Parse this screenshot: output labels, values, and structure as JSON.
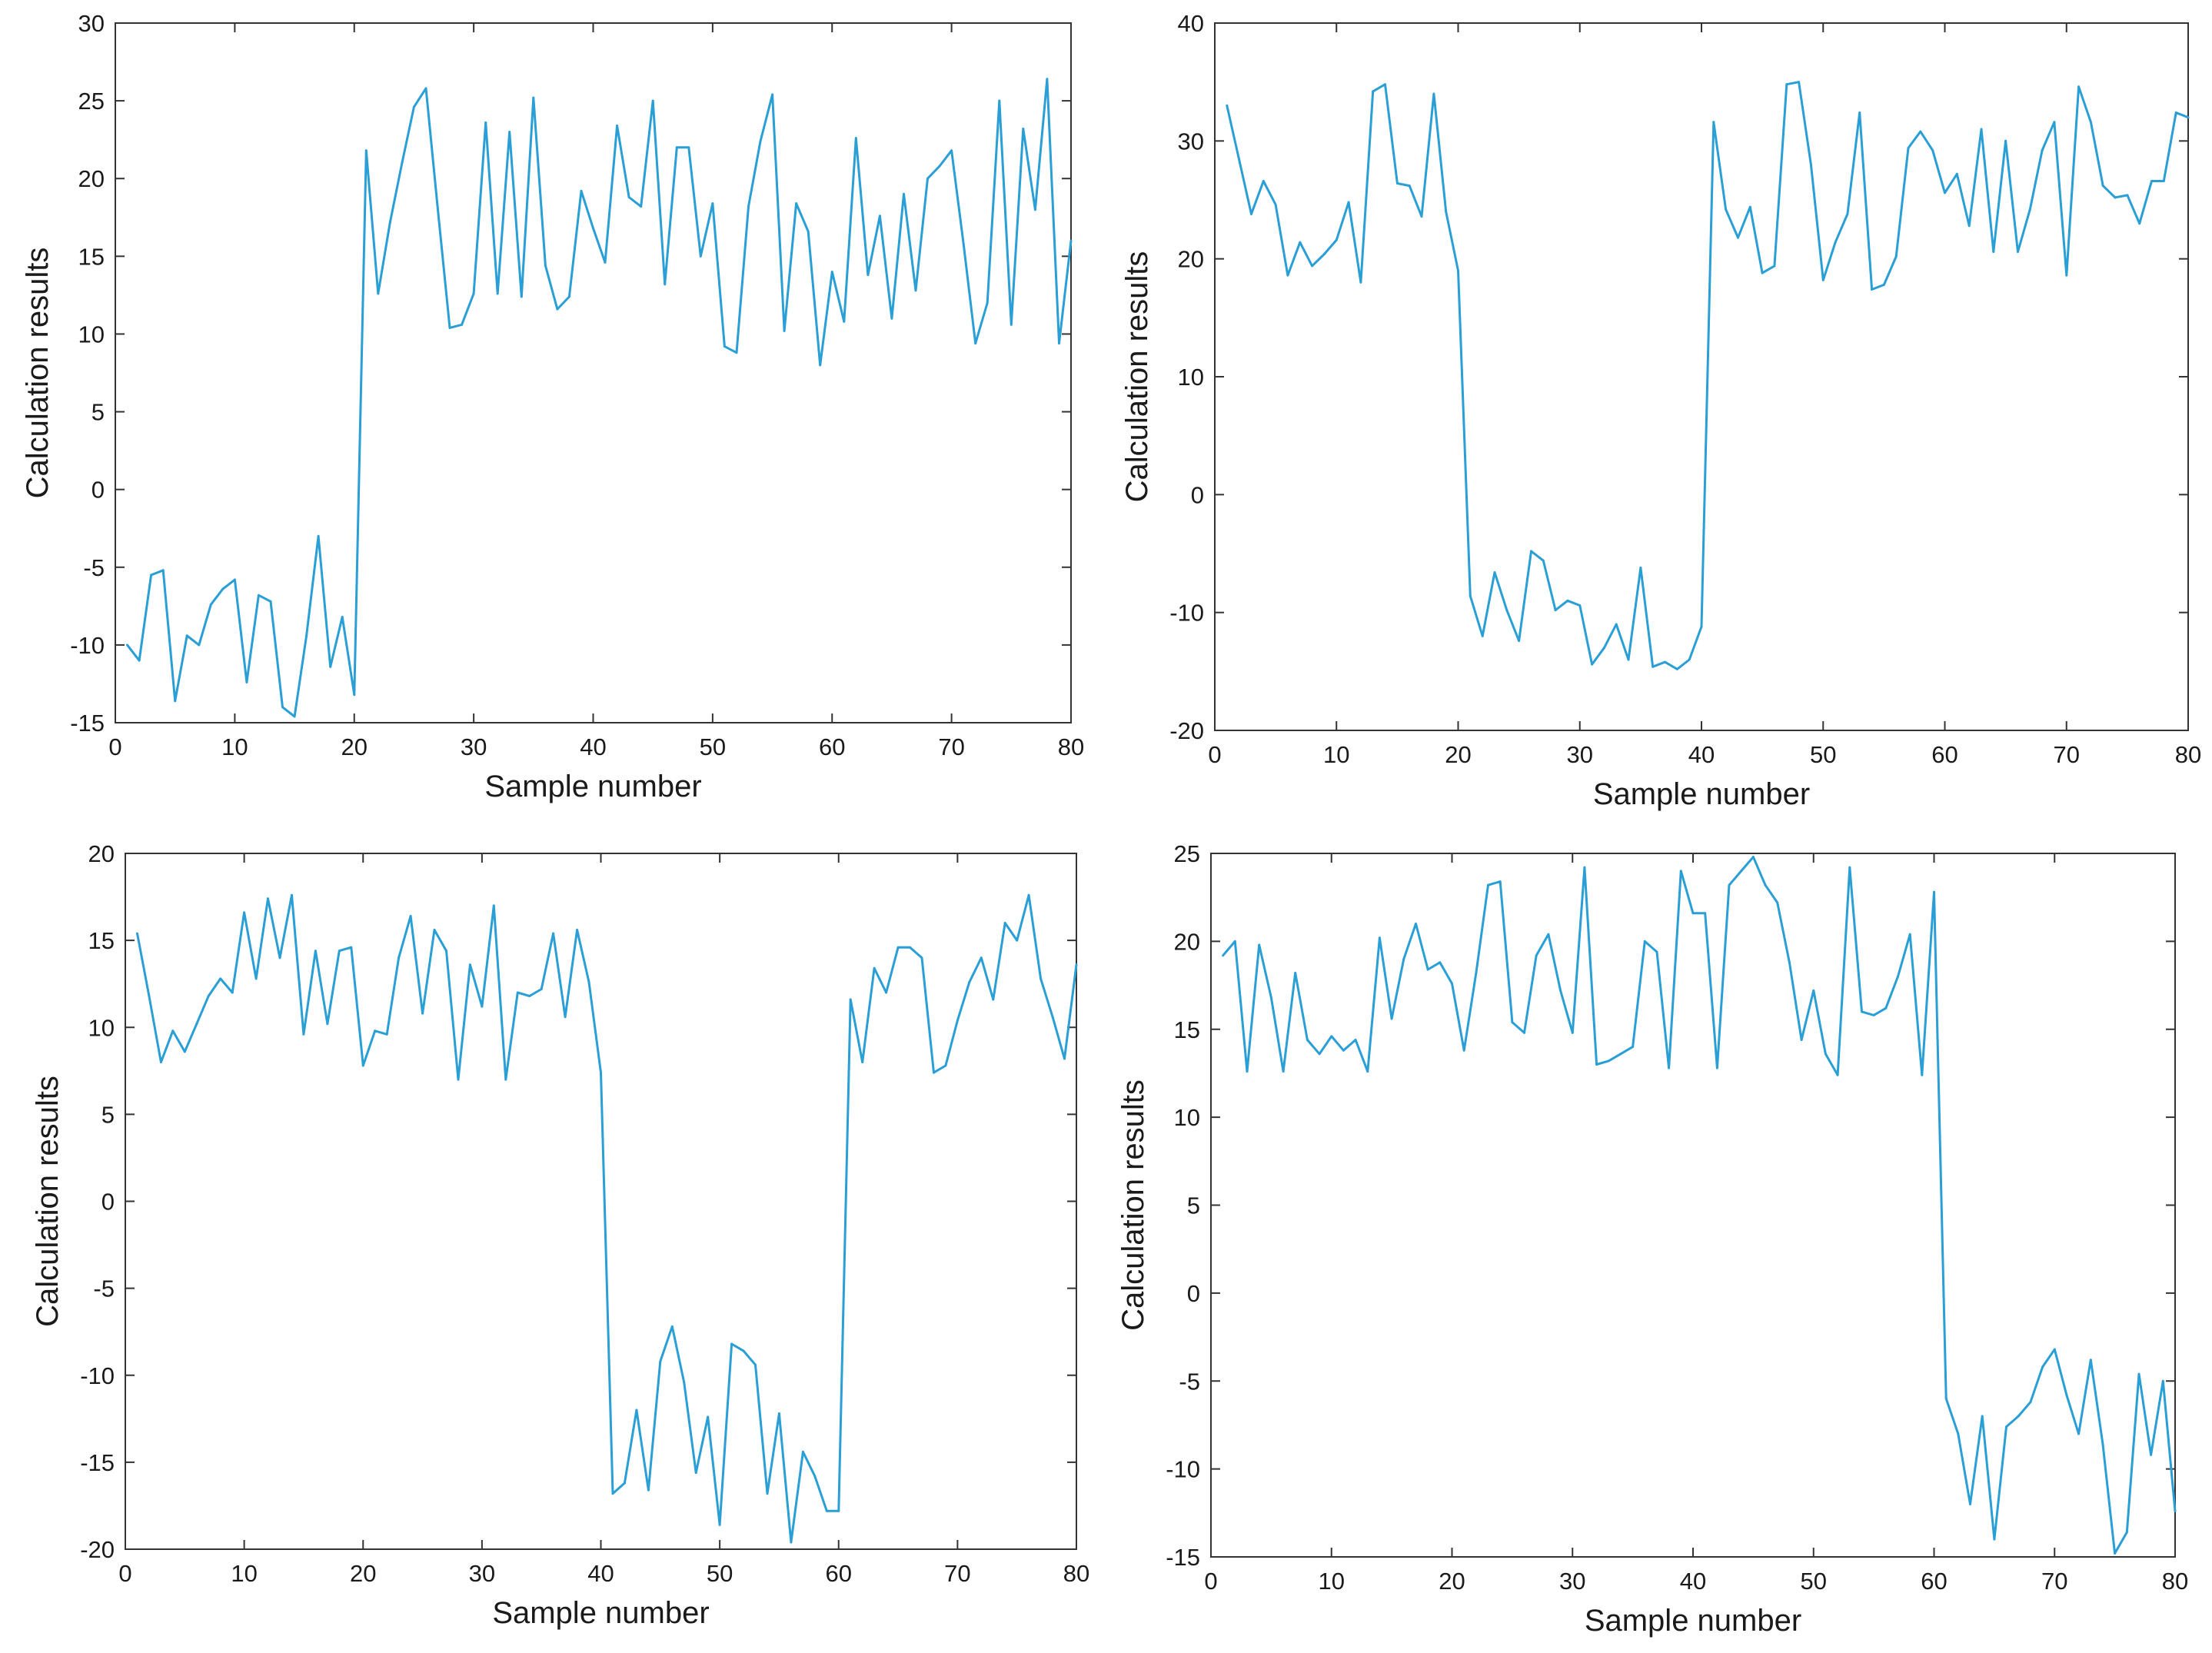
{
  "colors": {
    "line": "#2a9fd6",
    "axis": "#333333",
    "text": "#1a1a1a",
    "background": "#ffffff"
  },
  "chart_data": [
    {
      "type": "line",
      "title": "",
      "xlabel": "Sample number",
      "ylabel": "Calculation results",
      "xlim": [
        0,
        80
      ],
      "ylim": [
        -15,
        30
      ],
      "xticks": [
        0,
        10,
        20,
        30,
        40,
        50,
        60,
        70,
        80
      ],
      "yticks": [
        -15,
        -10,
        -5,
        0,
        5,
        10,
        15,
        20,
        25,
        30
      ],
      "grid": false,
      "series": [
        {
          "name": "Calculation results",
          "x_start": 1,
          "values": [
            -10,
            -11,
            -5.5,
            -5.2,
            -13.6,
            -9.4,
            -10,
            -7.4,
            -6.4,
            -5.8,
            -12.4,
            -6.8,
            -7.2,
            -14.0,
            -14.6,
            -9.4,
            -3.0,
            -11.4,
            -8.2,
            -13.2,
            21.8,
            12.6,
            17.2,
            21.0,
            24.6,
            25.8,
            18.0,
            10.4,
            10.6,
            12.6,
            23.6,
            12.6,
            23.0,
            12.4,
            25.2,
            14.4,
            11.6,
            12.4,
            19.2,
            16.8,
            14.6,
            23.4,
            18.8,
            18.2,
            25.0,
            13.2,
            22.0,
            22.0,
            15.0,
            18.4,
            9.2,
            8.8,
            18.2,
            22.4,
            25.4,
            10.2,
            18.4,
            16.6,
            8.0,
            14.0,
            10.8,
            22.6,
            13.8,
            17.6,
            11.0,
            19.0,
            12.8,
            20.0,
            20.8,
            21.8,
            15.8,
            9.4,
            12.0,
            25.0,
            10.6,
            23.2,
            18.0,
            26.4,
            9.4,
            16.0
          ]
        }
      ]
    },
    {
      "type": "line",
      "title": "",
      "xlabel": "Sample number",
      "ylabel": "Calculation results",
      "xlim": [
        0,
        80
      ],
      "ylim": [
        -20,
        40
      ],
      "xticks": [
        0,
        10,
        20,
        30,
        40,
        50,
        60,
        70,
        80
      ],
      "yticks": [
        -20,
        -10,
        0,
        10,
        20,
        30,
        40
      ],
      "grid": false,
      "series": [
        {
          "name": "Calculation results",
          "x_start": 1,
          "values": [
            33.0,
            28.4,
            23.8,
            26.6,
            24.6,
            18.6,
            21.4,
            19.4,
            20.4,
            21.6,
            24.8,
            18.0,
            34.2,
            34.8,
            26.4,
            26.2,
            23.6,
            34.0,
            24.0,
            19.0,
            -8.6,
            -12.0,
            -6.6,
            -9.8,
            -12.4,
            -4.8,
            -5.6,
            -9.8,
            -9.0,
            -9.4,
            -14.4,
            -13.0,
            -11.0,
            -14.0,
            -6.2,
            -14.6,
            -14.2,
            -14.8,
            -14.0,
            -11.2,
            31.6,
            24.2,
            21.8,
            24.4,
            18.8,
            19.4,
            34.8,
            35.0,
            28.0,
            18.2,
            21.4,
            23.8,
            32.4,
            17.4,
            17.8,
            20.2,
            29.4,
            30.8,
            29.2,
            25.6,
            27.2,
            22.8,
            31.0,
            20.6,
            30.0,
            20.6,
            24.2,
            29.2,
            31.6,
            18.6,
            34.6,
            31.6,
            26.2,
            25.2,
            25.4,
            23.0,
            26.6,
            26.6,
            32.4,
            32.0
          ]
        }
      ]
    },
    {
      "type": "line",
      "title": "",
      "xlabel": "Sample number",
      "ylabel": "Calculation results",
      "xlim": [
        0,
        80
      ],
      "ylim": [
        -20,
        20
      ],
      "xticks": [
        0,
        10,
        20,
        30,
        40,
        50,
        60,
        70,
        80
      ],
      "yticks": [
        -20,
        -15,
        -10,
        -5,
        0,
        5,
        10,
        15,
        20
      ],
      "grid": false,
      "series": [
        {
          "name": "Calculation results",
          "x_start": 1,
          "values": [
            15.4,
            11.8,
            8.0,
            9.8,
            8.6,
            10.2,
            11.8,
            12.8,
            12.0,
            16.6,
            12.8,
            17.4,
            14.0,
            17.6,
            9.6,
            14.4,
            10.2,
            14.4,
            14.6,
            7.8,
            9.8,
            9.6,
            14.0,
            16.4,
            10.8,
            15.6,
            14.4,
            7.0,
            13.6,
            11.2,
            17.0,
            7.0,
            12.0,
            11.8,
            12.2,
            15.4,
            10.6,
            15.6,
            12.6,
            7.4,
            -16.8,
            -16.2,
            -12.0,
            -16.6,
            -9.2,
            -7.2,
            -10.4,
            -15.6,
            -12.4,
            -18.6,
            -8.2,
            -8.6,
            -9.4,
            -16.8,
            -12.2,
            -19.6,
            -14.4,
            -15.8,
            -17.8,
            -17.8,
            11.6,
            8.0,
            13.4,
            12.0,
            14.6,
            14.6,
            14.0,
            7.4,
            7.8,
            10.4,
            12.6,
            14.0,
            11.6,
            16.0,
            15.0,
            17.6,
            12.8,
            10.6,
            8.2,
            13.6
          ]
        }
      ]
    },
    {
      "type": "line",
      "title": "",
      "xlabel": "Sample number",
      "ylabel": "Calculation results",
      "xlim": [
        0,
        80
      ],
      "ylim": [
        -15,
        25
      ],
      "xticks": [
        0,
        10,
        20,
        30,
        40,
        50,
        60,
        70,
        80
      ],
      "yticks": [
        -15,
        -10,
        -5,
        0,
        5,
        10,
        15,
        20,
        25
      ],
      "grid": false,
      "series": [
        {
          "name": "Calculation results",
          "x_start": 1,
          "values": [
            19.2,
            20.0,
            12.6,
            19.8,
            16.8,
            12.6,
            18.2,
            14.4,
            13.6,
            14.6,
            13.8,
            14.4,
            12.6,
            20.2,
            15.6,
            19.0,
            21.0,
            18.4,
            18.8,
            17.6,
            13.8,
            18.2,
            23.2,
            23.4,
            15.4,
            14.8,
            19.2,
            20.4,
            17.2,
            14.8,
            24.2,
            13.0,
            13.2,
            13.6,
            14.0,
            20.0,
            19.4,
            12.8,
            24.0,
            21.6,
            21.6,
            12.8,
            23.2,
            24.0,
            24.8,
            23.2,
            22.2,
            18.8,
            14.4,
            17.2,
            13.6,
            12.4,
            24.2,
            16.0,
            15.8,
            16.2,
            18.0,
            20.4,
            12.4,
            22.8,
            -6.0,
            -8.0,
            -12.0,
            -7.0,
            -14.0,
            -7.6,
            -7.0,
            -6.2,
            -4.2,
            -3.2,
            -5.8,
            -8.0,
            -3.8,
            -8.6,
            -14.8,
            -13.6,
            -4.6,
            -9.2,
            -5.0,
            -12.4
          ]
        }
      ]
    }
  ]
}
